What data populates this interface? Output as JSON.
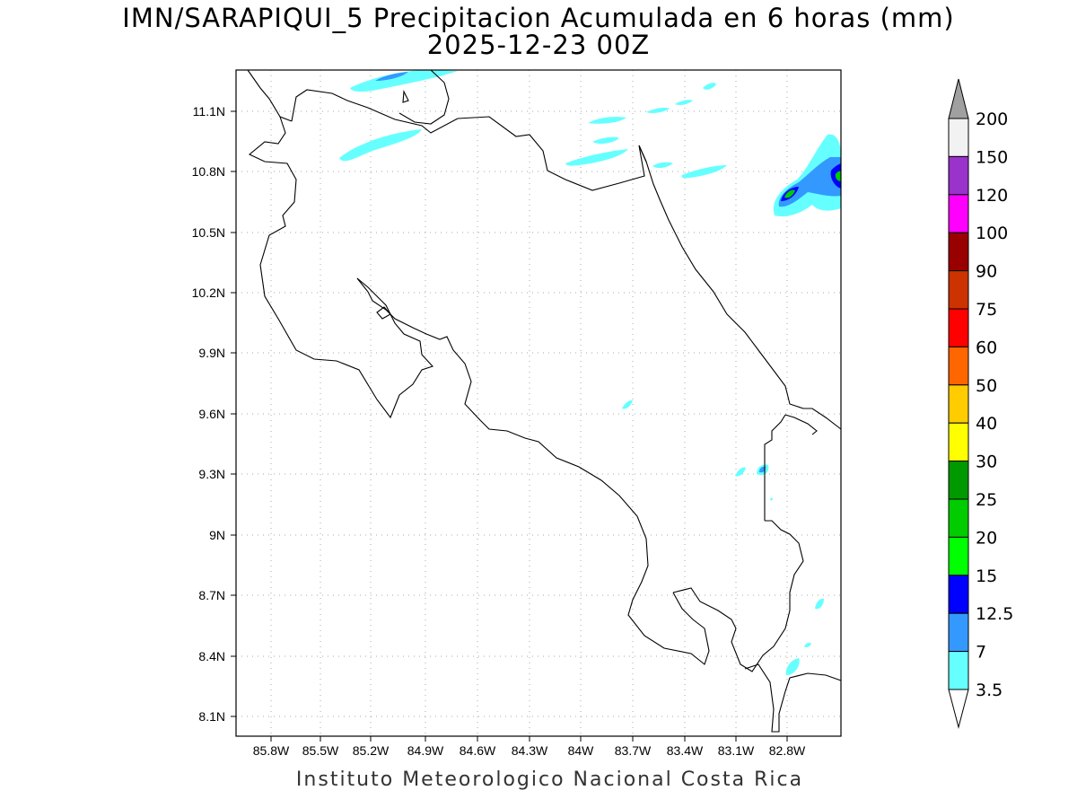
{
  "title_line1": "IMN/SARAPIQUI_5 Precipitacion Acumulada en 6 horas (mm)",
  "title_line2": "2025-12-23 00Z",
  "credit": "Instituto Meteorologico Nacional Costa Rica",
  "map": {
    "lon_range": [
      -86.03,
      -82.45
    ],
    "lat_range": [
      8.01,
      11.33
    ],
    "lat_ticks": [
      "11.1N",
      "10.8N",
      "10.5N",
      "10.2N",
      "9.9N",
      "9.6N",
      "9.3N",
      "9N",
      "8.7N",
      "8.4N",
      "8.1N"
    ],
    "lon_ticks": [
      "85.8W",
      "85.5W",
      "85.2W",
      "84.9W",
      "84.6W",
      "84.3W",
      "84W",
      "83.7W",
      "83.4W",
      "83.1W",
      "82.8W"
    ],
    "grid": true
  },
  "colorbar": {
    "levels": [
      "200",
      "150",
      "120",
      "100",
      "90",
      "75",
      "60",
      "50",
      "40",
      "30",
      "25",
      "20",
      "15",
      "12.5",
      "7",
      "3.5"
    ],
    "colors": [
      "#f2f2f2",
      "#9933cc",
      "#ff00ff",
      "#990000",
      "#cc3300",
      "#ff0000",
      "#ff6600",
      "#ffcc00",
      "#ffff00",
      "#009900",
      "#00cc00",
      "#00ff00",
      "#0000ff",
      "#3399ff",
      "#66ffff"
    ],
    "over_color": "#a0a0a0",
    "under_color": "#ffffff"
  }
}
